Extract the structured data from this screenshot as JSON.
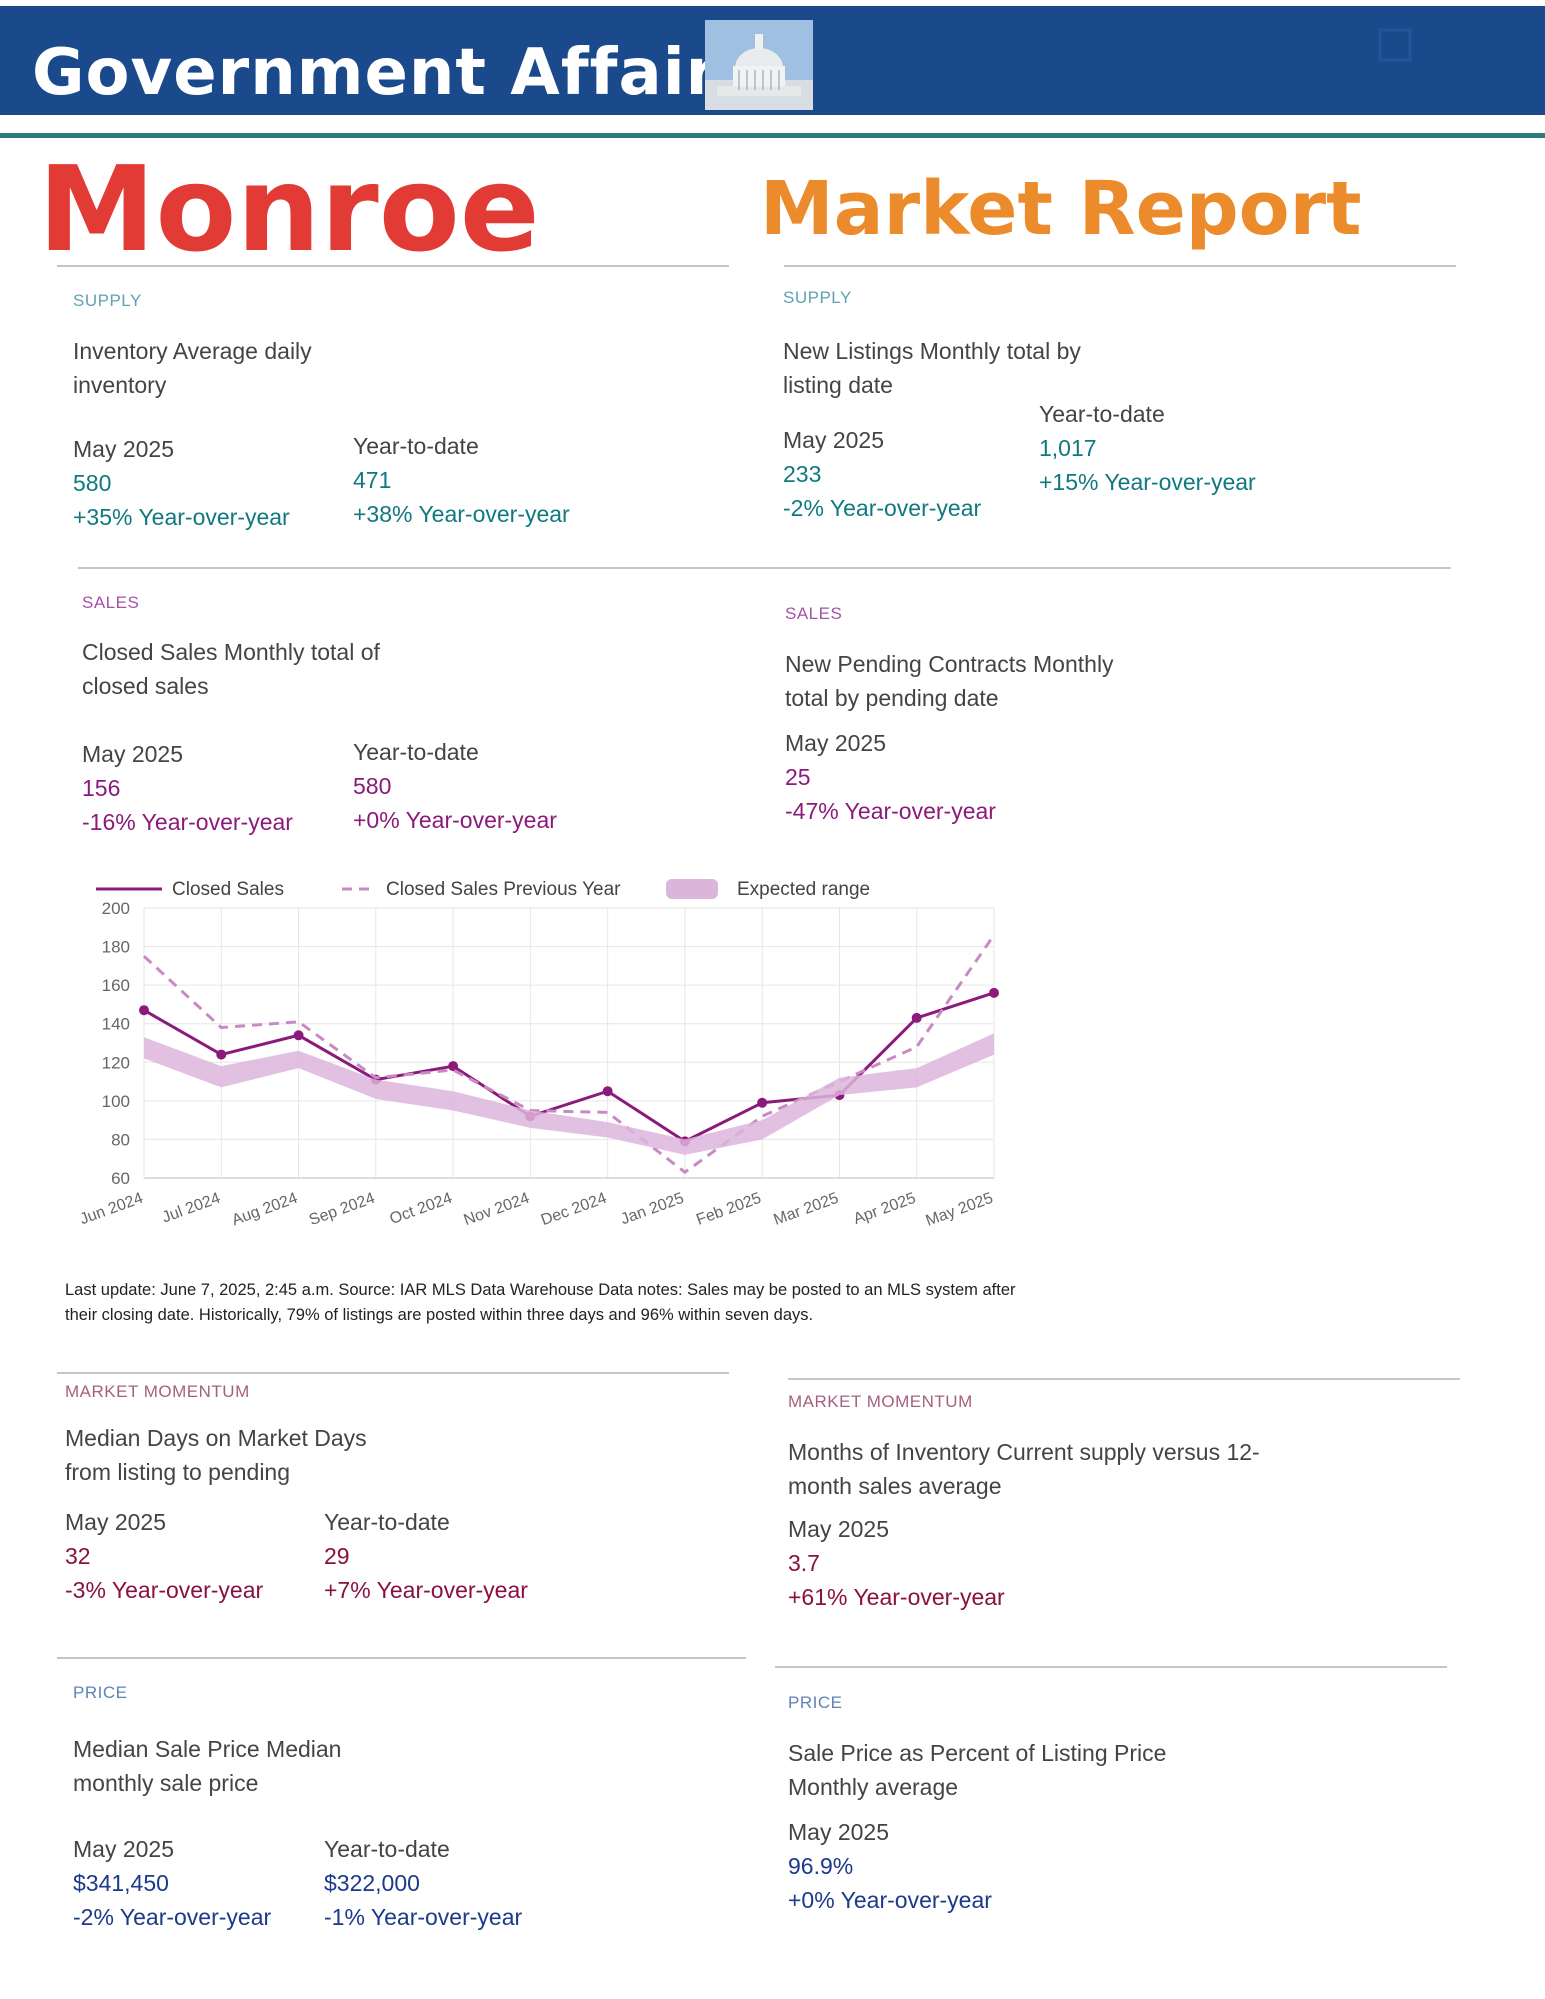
{
  "header": {
    "title": "Government Affairs",
    "county": "Monroe",
    "report": "Market Report"
  },
  "sections": [
    {
      "category": "SUPPLY",
      "title": [
        "Inventory Average daily",
        "inventory"
      ],
      "period": "May 2025",
      "value": "580",
      "change": "+35% Year-over-year",
      "ytd_label": "Year-to-date",
      "ytd_value": "471",
      "ytd_change": "+38% Year-over-year"
    },
    {
      "category": "SUPPLY",
      "title": [
        "New Listings Monthly total by",
        "listing date"
      ],
      "period": "May 2025",
      "value": "233",
      "change": "-2% Year-over-year",
      "ytd_label": "Year-to-date",
      "ytd_value": "1,017",
      "ytd_change": "+15% Year-over-year"
    },
    {
      "category": "SALES",
      "title": [
        "Closed Sales Monthly total of",
        "closed sales"
      ],
      "period": "May 2025",
      "value": "156",
      "change": "-16% Year-over-year",
      "ytd_label": "Year-to-date",
      "ytd_value": "580",
      "ytd_change": "+0% Year-over-year"
    },
    {
      "category": "SALES",
      "title": [
        "New Pending Contracts Monthly",
        "total by pending date"
      ],
      "period": "May 2025",
      "value": "25",
      "change": "-47% Year-over-year"
    },
    {
      "category": "MARKET MOMENTUM",
      "title": [
        "Median Days on Market Days",
        "from listing to pending"
      ],
      "period": "May 2025",
      "value": "32",
      "change": "-3% Year-over-year",
      "ytd_label": "Year-to-date",
      "ytd_value": "29",
      "ytd_change": "+7% Year-over-year"
    },
    {
      "category": "MARKET MOMENTUM",
      "title": [
        "Months of Inventory Current supply versus 12-",
        "month sales average"
      ],
      "period": "May 2025",
      "value": "3.7",
      "change": "+61% Year-over-year"
    },
    {
      "category": "PRICE",
      "title": [
        "Median Sale Price Median",
        "monthly sale price"
      ],
      "period": "May 2025",
      "value": "$341,450",
      "change": "-2% Year-over-year",
      "ytd_label": "Year-to-date",
      "ytd_value": "$322,000",
      "ytd_change": "-1% Year-over-year"
    },
    {
      "category": "PRICE",
      "title": [
        "Sale Price as Percent of Listing Price",
        "Monthly average"
      ],
      "period": "May 2025",
      "value": "96.9%",
      "change": "+0% Year-over-year"
    }
  ],
  "footnote": "Last update: June 7, 2025, 2:45 a.m. Source: IAR MLS Data Warehouse Data notes: Sales may be posted to an MLS system after their closing date. Historically, 79% of listings are posted within three days and 96% within seven days.",
  "chart_data": {
    "type": "line",
    "categories": [
      "Jun 2024",
      "Jul 2024",
      "Aug 2024",
      "Sep 2024",
      "Oct 2024",
      "Nov 2024",
      "Dec 2024",
      "Jan 2025",
      "Feb 2025",
      "Mar 2025",
      "Apr 2025",
      "May 2025"
    ],
    "series": [
      {
        "name": "Closed Sales",
        "color": "#8b1a7a",
        "style": "solid",
        "values": [
          147,
          124,
          134,
          111,
          118,
          92,
          105,
          79,
          99,
          103,
          143,
          156
        ]
      },
      {
        "name": "Closed Sales Previous Year",
        "color": "#c98ac4",
        "style": "dashed",
        "values": [
          175,
          138,
          141,
          112,
          116,
          95,
          94,
          63,
          92,
          110,
          128,
          186
        ]
      },
      {
        "name": "Expected range",
        "color": "#dcb5dc",
        "style": "band",
        "lower": [
          122,
          107,
          117,
          101,
          95,
          86,
          81,
          72,
          80,
          103,
          107,
          124
        ],
        "upper": [
          133,
          118,
          126,
          111,
          105,
          95,
          89,
          80,
          90,
          112,
          117,
          135
        ]
      }
    ],
    "ylim": [
      60,
      200
    ],
    "yticks": [
      60,
      80,
      100,
      120,
      140,
      160,
      180,
      200
    ],
    "grid": true
  }
}
